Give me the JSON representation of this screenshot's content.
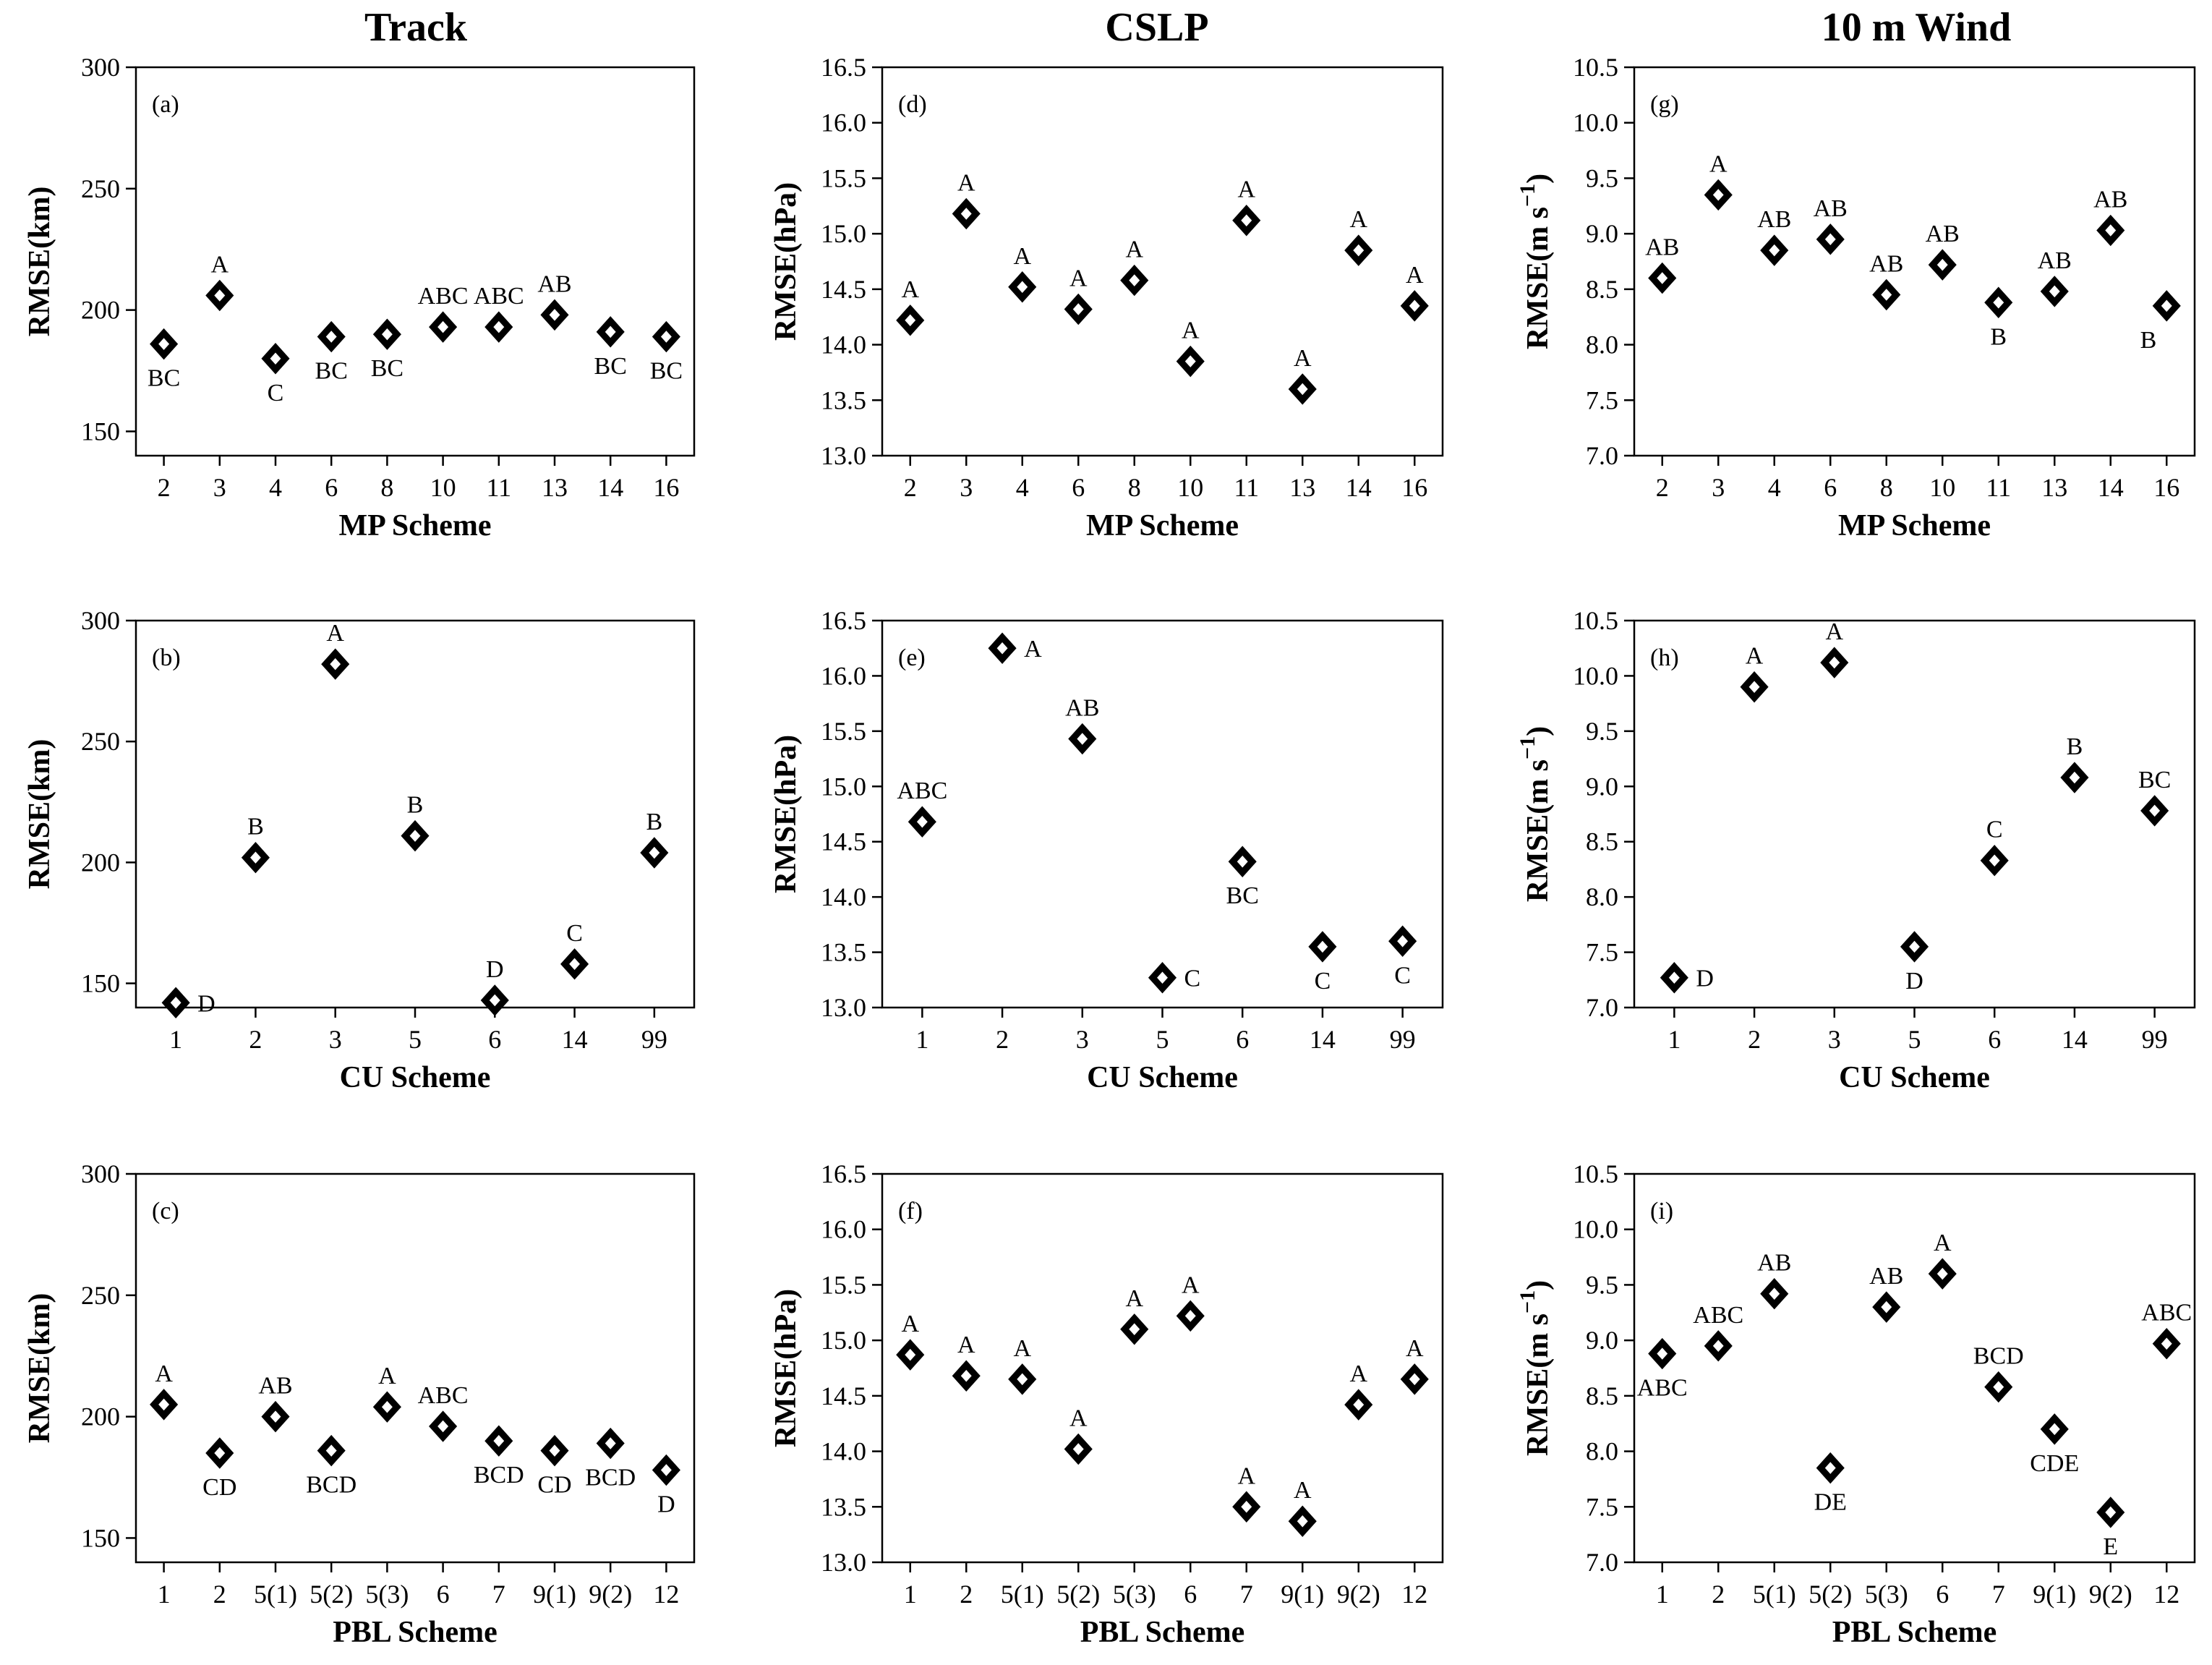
{
  "column_titles": [
    "Track",
    "CSLP",
    "10 m Wind"
  ],
  "chart_data": [
    {
      "panel": "(a)",
      "type": "scatter",
      "xlabel": "MP Scheme",
      "ylabel": "RMSE(km)",
      "ylim": [
        140,
        300
      ],
      "yticks": [
        150,
        200,
        250,
        300
      ],
      "categories": [
        "2",
        "3",
        "4",
        "6",
        "8",
        "10",
        "11",
        "13",
        "14",
        "16"
      ],
      "values": [
        186,
        206,
        180,
        189,
        190,
        193,
        193,
        198,
        191,
        189
      ],
      "groups": [
        "BC",
        "A",
        "C",
        "BC",
        "BC",
        "ABC",
        "ABC",
        "AB",
        "BC",
        "BC"
      ],
      "label_pos": [
        "below",
        "above",
        "below",
        "below",
        "below",
        "above",
        "above",
        "above",
        "below",
        "below"
      ]
    },
    {
      "panel": "(d)",
      "type": "scatter",
      "xlabel": "MP Scheme",
      "ylabel": "RMSE(hPa)",
      "ylim": [
        13.0,
        16.5
      ],
      "yticks": [
        13.0,
        13.5,
        14.0,
        14.5,
        15.0,
        15.5,
        16.0,
        16.5
      ],
      "categories": [
        "2",
        "3",
        "4",
        "6",
        "8",
        "10",
        "11",
        "13",
        "14",
        "16"
      ],
      "values": [
        14.22,
        15.18,
        14.52,
        14.32,
        14.58,
        13.85,
        15.12,
        13.6,
        14.85,
        14.35
      ],
      "groups": [
        "A",
        "A",
        "A",
        "A",
        "A",
        "A",
        "A",
        "A",
        "A",
        "A"
      ],
      "label_pos": [
        "above",
        "above",
        "above",
        "above",
        "above",
        "above",
        "above",
        "above",
        "above",
        "above"
      ]
    },
    {
      "panel": "(g)",
      "type": "scatter",
      "xlabel": "MP Scheme",
      "ylabel": "RMSE(m s",
      "ylabel_sup": "−1",
      "ylabel_close": ")",
      "ylim": [
        7.0,
        10.5
      ],
      "yticks": [
        7.0,
        7.5,
        8.0,
        8.5,
        9.0,
        9.5,
        10.0,
        10.5
      ],
      "categories": [
        "2",
        "3",
        "4",
        "6",
        "8",
        "10",
        "11",
        "13",
        "14",
        "16"
      ],
      "values": [
        8.6,
        9.35,
        8.85,
        8.95,
        8.45,
        8.72,
        8.38,
        8.48,
        9.03,
        8.35
      ],
      "groups": [
        "AB",
        "A",
        "AB",
        "AB",
        "AB",
        "AB",
        "B",
        "AB",
        "AB",
        "B"
      ],
      "label_pos": [
        "above",
        "above",
        "above",
        "above",
        "above",
        "above",
        "below",
        "above",
        "above",
        "below-left"
      ]
    },
    {
      "panel": "(b)",
      "type": "scatter",
      "xlabel": "CU Scheme",
      "ylabel": "RMSE(km)",
      "ylim": [
        140,
        300
      ],
      "yticks": [
        150,
        200,
        250,
        300
      ],
      "categories": [
        "1",
        "2",
        "3",
        "5",
        "6",
        "14",
        "99"
      ],
      "values": [
        142,
        202,
        282,
        211,
        143,
        158,
        204
      ],
      "groups": [
        "D",
        "B",
        "A",
        "B",
        "D",
        "C",
        "B"
      ],
      "label_pos": [
        "right",
        "above",
        "above",
        "above",
        "above",
        "above",
        "above"
      ]
    },
    {
      "panel": "(e)",
      "type": "scatter",
      "xlabel": "CU Scheme",
      "ylabel": "RMSE(hPa)",
      "ylim": [
        13.0,
        16.5
      ],
      "yticks": [
        13.0,
        13.5,
        14.0,
        14.5,
        15.0,
        15.5,
        16.0,
        16.5
      ],
      "categories": [
        "1",
        "2",
        "3",
        "5",
        "6",
        "14",
        "99"
      ],
      "values": [
        14.68,
        16.25,
        15.43,
        13.27,
        14.32,
        13.55,
        13.6
      ],
      "groups": [
        "ABC",
        "A",
        "AB",
        "C",
        "BC",
        "C",
        "C"
      ],
      "label_pos": [
        "above",
        "right",
        "above",
        "right",
        "below",
        "below",
        "below"
      ]
    },
    {
      "panel": "(h)",
      "type": "scatter",
      "xlabel": "CU Scheme",
      "ylabel": "RMSE(m s",
      "ylabel_sup": "−1",
      "ylabel_close": ")",
      "ylim": [
        7.0,
        10.5
      ],
      "yticks": [
        7.0,
        7.5,
        8.0,
        8.5,
        9.0,
        9.5,
        10.0,
        10.5
      ],
      "categories": [
        "1",
        "2",
        "3",
        "5",
        "6",
        "14",
        "99"
      ],
      "values": [
        7.27,
        9.9,
        10.12,
        7.55,
        8.33,
        9.08,
        8.78
      ],
      "groups": [
        "D",
        "A",
        "A",
        "D",
        "C",
        "B",
        "BC"
      ],
      "label_pos": [
        "right",
        "above",
        "above",
        "below",
        "above",
        "above",
        "above"
      ]
    },
    {
      "panel": "(c)",
      "type": "scatter",
      "xlabel": "PBL Scheme",
      "ylabel": "RMSE(km)",
      "ylim": [
        140,
        300
      ],
      "yticks": [
        150,
        200,
        250,
        300
      ],
      "categories": [
        "1",
        "2",
        "5(1)",
        "5(2)",
        "5(3)",
        "6",
        "7",
        "9(1)",
        "9(2)",
        "12"
      ],
      "values": [
        205,
        185,
        200,
        186,
        204,
        196,
        190,
        186,
        189,
        178
      ],
      "groups": [
        "A",
        "CD",
        "AB",
        "BCD",
        "A",
        "ABC",
        "BCD",
        "CD",
        "BCD",
        "D"
      ],
      "label_pos": [
        "above",
        "below",
        "above",
        "below",
        "above",
        "above",
        "below",
        "below",
        "below",
        "below"
      ]
    },
    {
      "panel": "(f)",
      "type": "scatter",
      "xlabel": "PBL Scheme",
      "ylabel": "RMSE(hPa)",
      "ylim": [
        13.0,
        16.5
      ],
      "yticks": [
        13.0,
        13.5,
        14.0,
        14.5,
        15.0,
        15.5,
        16.0,
        16.5
      ],
      "categories": [
        "1",
        "2",
        "5(1)",
        "5(2)",
        "5(3)",
        "6",
        "7",
        "9(1)",
        "9(2)",
        "12"
      ],
      "values": [
        14.87,
        14.68,
        14.65,
        14.02,
        15.1,
        15.22,
        13.5,
        13.37,
        14.42,
        14.65
      ],
      "groups": [
        "A",
        "A",
        "A",
        "A",
        "A",
        "A",
        "A",
        "A",
        "A",
        "A"
      ],
      "label_pos": [
        "above",
        "above",
        "above",
        "above",
        "above",
        "above",
        "above",
        "above",
        "above",
        "above"
      ]
    },
    {
      "panel": "(i)",
      "type": "scatter",
      "xlabel": "PBL Scheme",
      "ylabel": "RMSE(m s",
      "ylabel_sup": "−1",
      "ylabel_close": ")",
      "ylim": [
        7.0,
        10.5
      ],
      "yticks": [
        7.0,
        7.5,
        8.0,
        8.5,
        9.0,
        9.5,
        10.0,
        10.5
      ],
      "categories": [
        "1",
        "2",
        "5(1)",
        "5(2)",
        "5(3)",
        "6",
        "7",
        "9(1)",
        "9(2)",
        "12"
      ],
      "values": [
        8.88,
        8.95,
        9.42,
        7.85,
        9.3,
        9.6,
        8.58,
        8.2,
        7.45,
        8.97
      ],
      "groups": [
        "ABC",
        "ABC",
        "AB",
        "DE",
        "AB",
        "A",
        "BCD",
        "CDE",
        "E",
        "ABC"
      ],
      "label_pos": [
        "below",
        "above",
        "above",
        "below",
        "above",
        "above",
        "above",
        "below",
        "below",
        "above"
      ]
    }
  ]
}
